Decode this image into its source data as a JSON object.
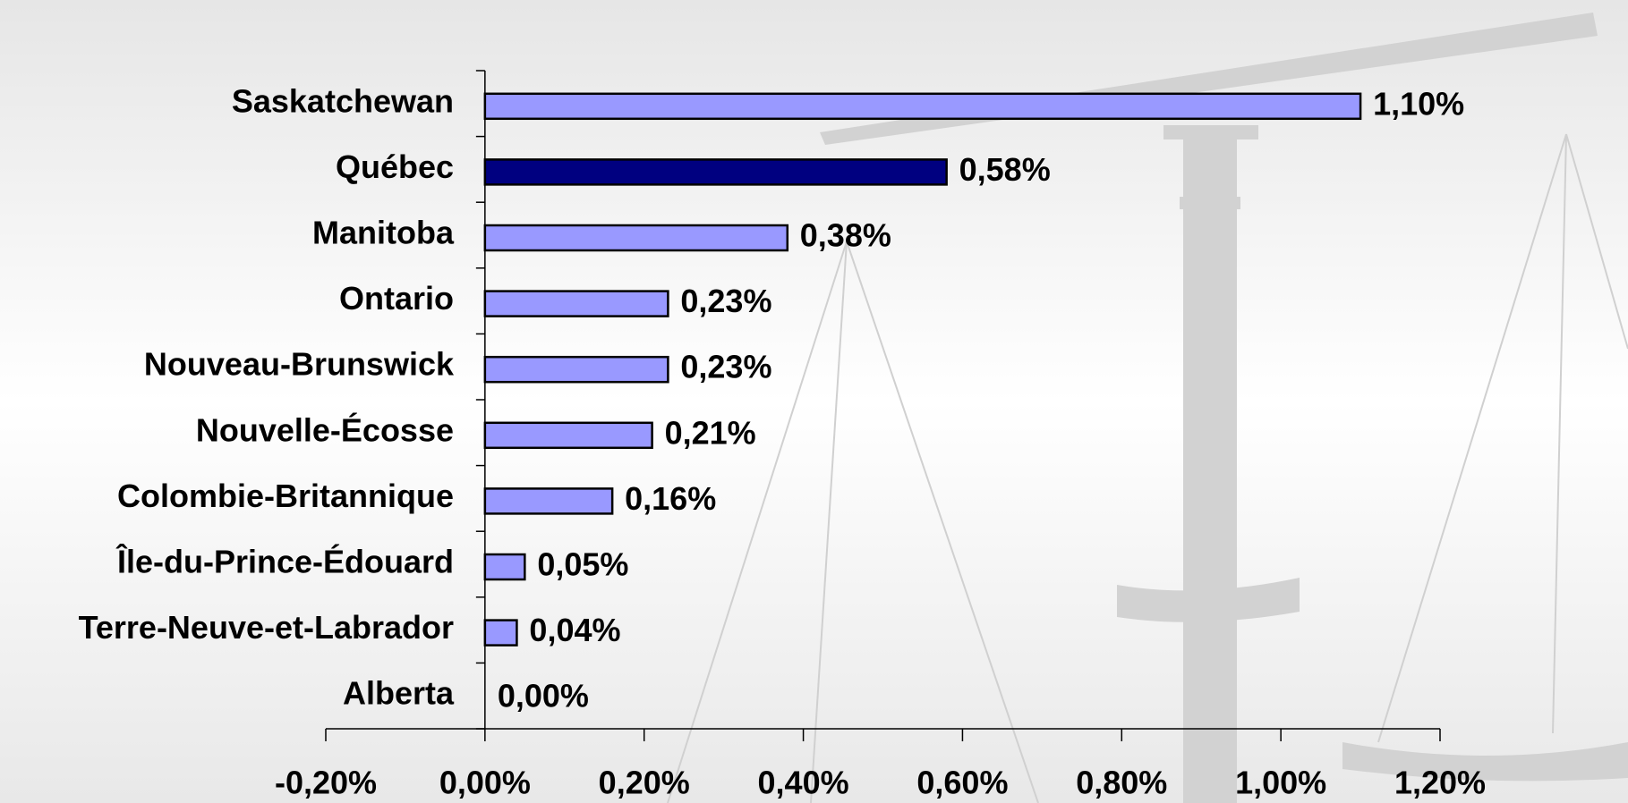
{
  "chart_data": {
    "type": "bar",
    "orientation": "horizontal",
    "categories": [
      "Saskatchewan",
      "Québec",
      "Manitoba",
      "Ontario",
      "Nouveau-Brunswick",
      "Nouvelle-Écosse",
      "Colombie-Britannique",
      "Île-du-Prince-Édouard",
      "Terre-Neuve-et-Labrador",
      "Alberta"
    ],
    "values": [
      1.1,
      0.58,
      0.38,
      0.23,
      0.23,
      0.21,
      0.16,
      0.05,
      0.04,
      0.0
    ],
    "value_labels": [
      "1,10%",
      "0,58%",
      "0,38%",
      "0,23%",
      "0,23%",
      "0,21%",
      "0,16%",
      "0,05%",
      "0,04%",
      "0,00%"
    ],
    "colors": [
      "#9999ff",
      "#000080",
      "#9999ff",
      "#9999ff",
      "#9999ff",
      "#9999ff",
      "#9999ff",
      "#9999ff",
      "#9999ff",
      "#9999ff"
    ],
    "xlim": [
      -0.2,
      1.2
    ],
    "xticks": [
      {
        "value": -0.2,
        "label": "-0,20%"
      },
      {
        "value": 0,
        "label": "0,00%"
      },
      {
        "value": 0.2,
        "label": "0,20%"
      },
      {
        "value": 0.4,
        "label": "0,40%"
      },
      {
        "value": 0.6,
        "label": "0,60%"
      },
      {
        "value": 0.8,
        "label": "0,80%"
      },
      {
        "value": 1.0,
        "label": "1,00%"
      },
      {
        "value": 1.2,
        "label": "1,20%"
      }
    ]
  }
}
